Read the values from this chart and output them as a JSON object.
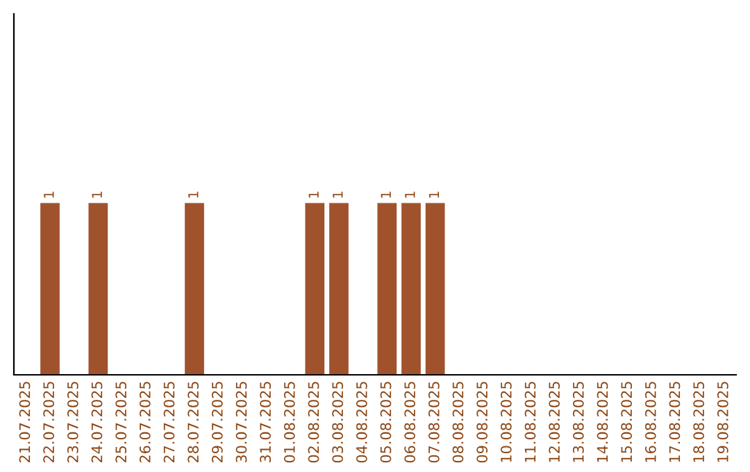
{
  "chart_data": {
    "type": "bar",
    "categories": [
      "21.07.2025",
      "22.07.2025",
      "23.07.2025",
      "24.07.2025",
      "25.07.2025",
      "26.07.2025",
      "27.07.2025",
      "28.07.2025",
      "29.07.2025",
      "30.07.2025",
      "31.07.2025",
      "01.08.2025",
      "02.08.2025",
      "03.08.2025",
      "04.08.2025",
      "05.08.2025",
      "06.08.2025",
      "07.08.2025",
      "08.08.2025",
      "09.08.2025",
      "10.08.2025",
      "11.08.2025",
      "12.08.2025",
      "13.08.2025",
      "14.08.2025",
      "15.08.2025",
      "16.08.2025",
      "17.08.2025",
      "18.08.2025",
      "19.08.2025"
    ],
    "values": [
      0,
      1,
      0,
      1,
      0,
      0,
      0,
      1,
      0,
      0,
      0,
      0,
      1,
      1,
      0,
      1,
      1,
      1,
      0,
      0,
      0,
      0,
      0,
      0,
      0,
      0,
      0,
      0,
      0,
      0
    ],
    "value_labels": [
      null,
      "1",
      null,
      "1",
      null,
      null,
      null,
      "1",
      null,
      null,
      null,
      null,
      "1",
      "1",
      null,
      "1",
      "1",
      "1",
      null,
      null,
      null,
      null,
      null,
      null,
      null,
      null,
      null,
      null,
      null,
      null
    ],
    "color": "#a0522d",
    "grid": false,
    "legend": false
  }
}
